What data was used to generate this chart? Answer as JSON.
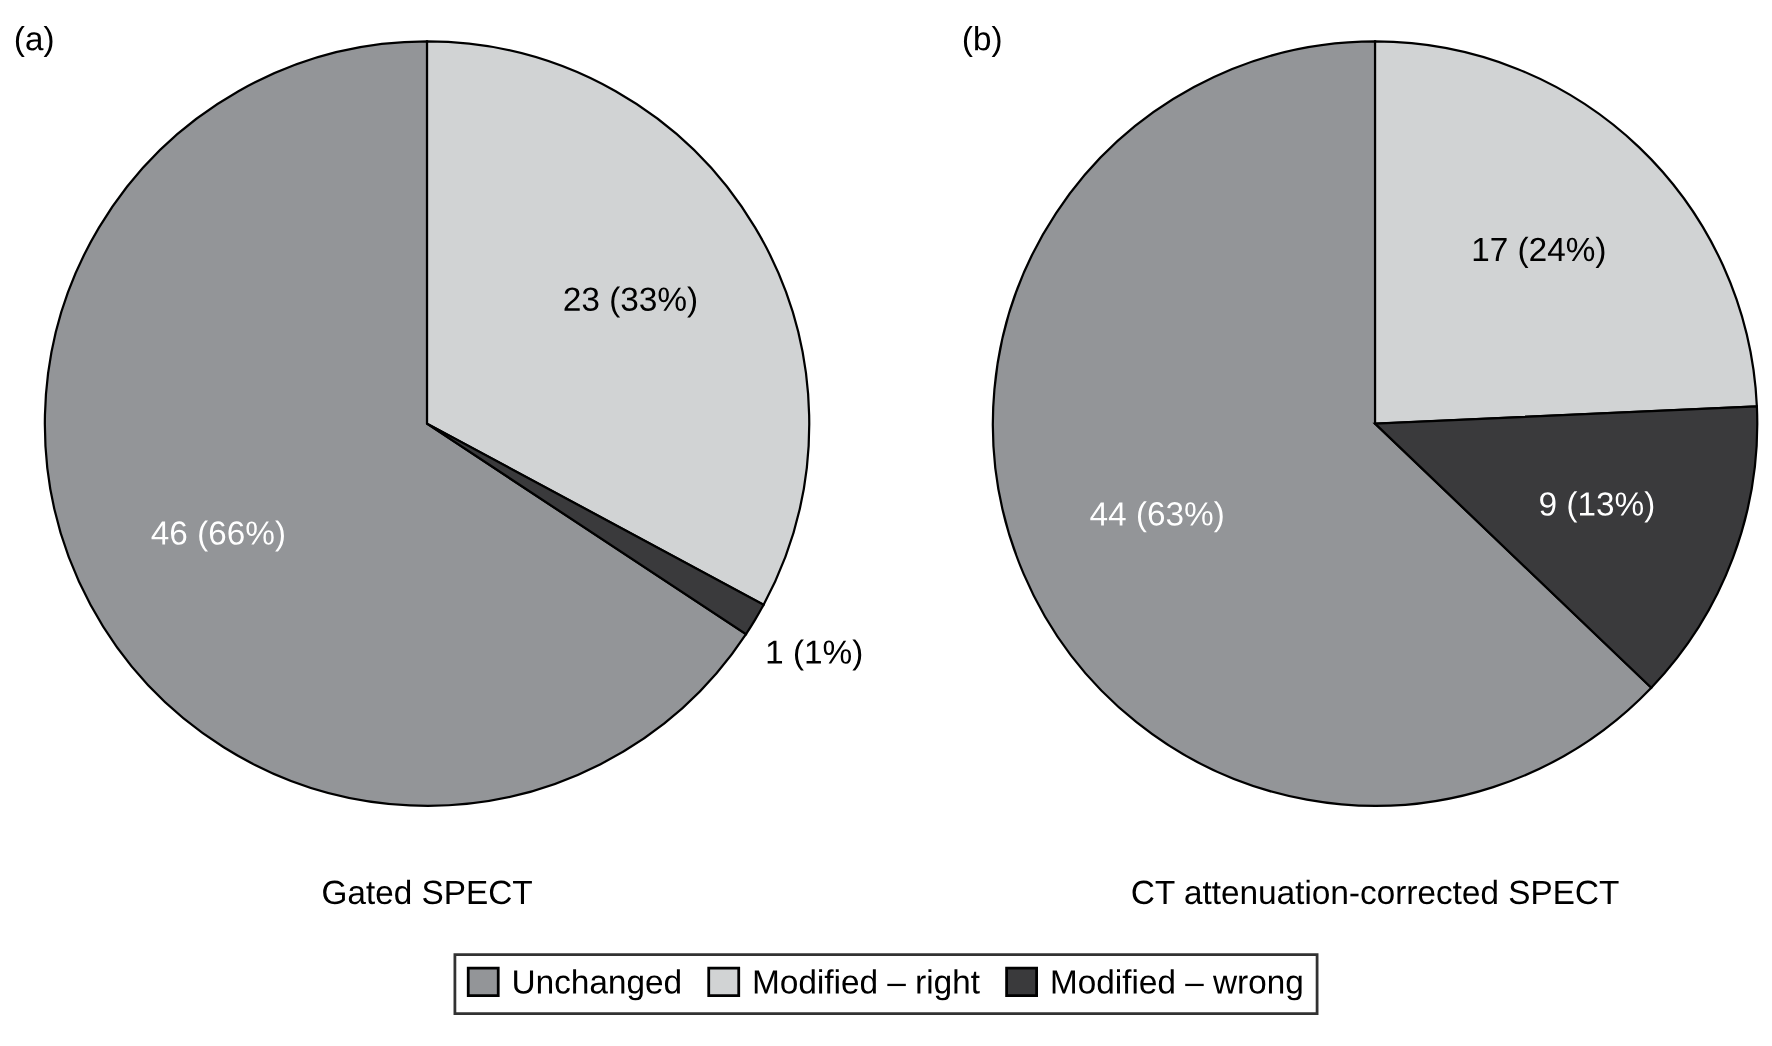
{
  "chart_data": [
    {
      "type": "pie",
      "title": "(a)",
      "xlabel": "Gated SPECT",
      "categories": [
        "Unchanged",
        "Modified – right",
        "Modified – wrong"
      ],
      "values": [
        46,
        23,
        1
      ],
      "colors": [
        "#939598",
        "#d1d3d4",
        "#3a3a3c"
      ],
      "value_labels": [
        "46 (66%)",
        "23 (33%)",
        "1 (1%)"
      ],
      "legend": "bottom"
    },
    {
      "type": "pie",
      "title": "(b)",
      "xlabel": "CT attenuation-corrected SPECT",
      "categories": [
        null,
        null,
        null
      ],
      "values": [
        44,
        17,
        9
      ],
      "colors": [
        "#939598",
        "#d1d3d4",
        "#3a3a3c"
      ],
      "value_labels": [
        "44 (63%)",
        "17 (24%)",
        "9 (13%)"
      ]
    }
  ]
}
